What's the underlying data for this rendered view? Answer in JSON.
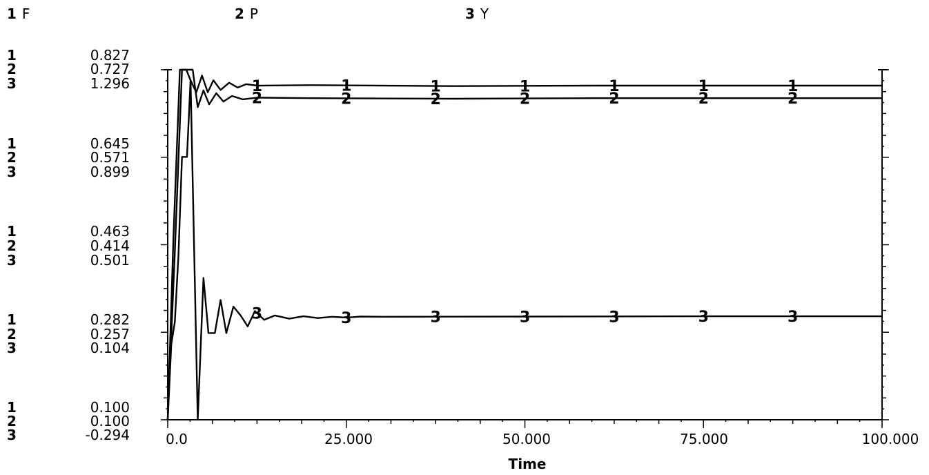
{
  "chart_data": {
    "type": "line",
    "xlabel": "Time",
    "xlim": [
      0,
      100
    ],
    "x_ticks": [
      "0.0",
      "25.000",
      "50.000",
      "75.000",
      "100.000"
    ],
    "series": [
      {
        "id": "1",
        "name": "F",
        "ylim": [
          0.1,
          0.827
        ],
        "y_ticks": [
          "0.827",
          "0.645",
          "0.463",
          "0.282",
          "0.100"
        ],
        "points": [
          [
            0,
            0.1
          ],
          [
            0.8,
            0.48
          ],
          [
            1.7,
            0.827
          ],
          [
            2.6,
            0.827
          ],
          [
            3.2,
            0.805
          ],
          [
            4.0,
            0.78
          ],
          [
            4.8,
            0.815
          ],
          [
            5.6,
            0.78
          ],
          [
            6.4,
            0.805
          ],
          [
            7.4,
            0.785
          ],
          [
            8.6,
            0.8
          ],
          [
            9.8,
            0.79
          ],
          [
            11,
            0.797
          ],
          [
            12.5,
            0.794
          ],
          [
            20,
            0.795
          ],
          [
            40,
            0.793
          ],
          [
            60,
            0.794
          ],
          [
            80,
            0.794
          ],
          [
            100,
            0.794
          ]
        ]
      },
      {
        "id": "2",
        "name": "P",
        "ylim": [
          0.1,
          0.727
        ],
        "y_ticks": [
          "0.727",
          "0.571",
          "0.414",
          "0.257",
          "0.100"
        ],
        "points": [
          [
            0,
            0.1
          ],
          [
            1.0,
            0.4
          ],
          [
            2.0,
            0.727
          ],
          [
            2.8,
            0.727
          ],
          [
            3.5,
            0.73
          ],
          [
            4.2,
            0.66
          ],
          [
            5.0,
            0.69
          ],
          [
            5.8,
            0.665
          ],
          [
            6.8,
            0.685
          ],
          [
            7.8,
            0.67
          ],
          [
            9.0,
            0.68
          ],
          [
            10.5,
            0.674
          ],
          [
            12.5,
            0.677
          ],
          [
            20,
            0.676
          ],
          [
            40,
            0.675
          ],
          [
            60,
            0.676
          ],
          [
            80,
            0.676
          ],
          [
            100,
            0.676
          ]
        ]
      },
      {
        "id": "3",
        "name": "Y",
        "ylim": [
          -0.294,
          1.296
        ],
        "y_ticks": [
          "1.296",
          "0.899",
          "0.501",
          "0.104",
          "-0.294"
        ],
        "points": [
          [
            0,
            -0.294
          ],
          [
            0.5,
            0.05
          ],
          [
            1.0,
            0.15
          ],
          [
            1.5,
            0.45
          ],
          [
            2.0,
            0.9
          ],
          [
            2.7,
            0.9
          ],
          [
            3.2,
            1.25
          ],
          [
            4.2,
            -0.294
          ],
          [
            5.0,
            0.35
          ],
          [
            5.7,
            0.1
          ],
          [
            6.6,
            0.1
          ],
          [
            7.4,
            0.25
          ],
          [
            8.2,
            0.1
          ],
          [
            9.2,
            0.22
          ],
          [
            10.2,
            0.18
          ],
          [
            11.2,
            0.13
          ],
          [
            12.2,
            0.2
          ],
          [
            13.5,
            0.16
          ],
          [
            15,
            0.18
          ],
          [
            17,
            0.165
          ],
          [
            19,
            0.176
          ],
          [
            21,
            0.168
          ],
          [
            23,
            0.174
          ],
          [
            25,
            0.17
          ],
          [
            27,
            0.175
          ],
          [
            30,
            0.174
          ],
          [
            50,
            0.175
          ],
          [
            75,
            0.176
          ],
          [
            100,
            0.176
          ]
        ]
      }
    ],
    "marker_x": [
      12.5,
      25,
      37.5,
      50,
      62.5,
      75,
      87.5
    ]
  }
}
